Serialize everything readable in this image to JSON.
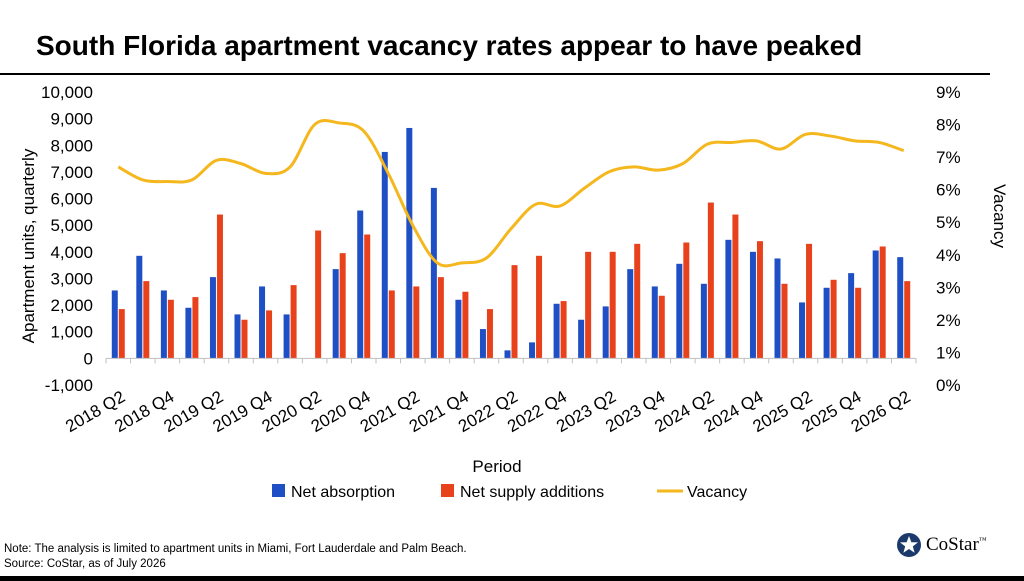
{
  "title": "South Florida apartment vacancy rates appear to have peaked",
  "footnote": {
    "note": "Note: The analysis is limited to apartment units in Miami, Fort Lauderdale and Palm Beach.",
    "source": "Source: CoStar, as of July 2026"
  },
  "logo": {
    "text": "CoStar",
    "tm": "™",
    "icon": "costar-star-logo"
  },
  "colors": {
    "absorption": "#1f4fc4",
    "supply": "#e8421c",
    "vacancy": "#f5b71e",
    "axis": "#bfbfbf"
  },
  "chart_data": {
    "type": "bar",
    "title": "South Florida apartment vacancy rates appear to have peaked",
    "xlabel": "Period",
    "ylabel": "Apartment units, quarterly",
    "y2label": "Vacancy",
    "ylim": [
      -1000,
      10000
    ],
    "y2lim": [
      0,
      9
    ],
    "yticks": [
      "10,000",
      "9,000",
      "8,000",
      "7,000",
      "6,000",
      "5,000",
      "4,000",
      "3,000",
      "2,000",
      "1,000",
      "0",
      "-1,000"
    ],
    "y2ticks": [
      "9%",
      "8%",
      "7%",
      "6%",
      "5%",
      "4%",
      "3%",
      "2%",
      "1%",
      "0%"
    ],
    "xticklabels": [
      "2018 Q2",
      "2018 Q4",
      "2019 Q2",
      "2019 Q4",
      "2020 Q2",
      "2020 Q4",
      "2021 Q2",
      "2021 Q4",
      "2022 Q2",
      "2022 Q4",
      "2023 Q2",
      "2023 Q4",
      "2024 Q2",
      "2024 Q4",
      "2025 Q2",
      "2025 Q4",
      "2026 Q2"
    ],
    "categories": [
      "2018 Q2",
      "2018 Q3",
      "2018 Q4",
      "2019 Q1",
      "2019 Q2",
      "2019 Q3",
      "2019 Q4",
      "2020 Q1",
      "2020 Q2",
      "2020 Q3",
      "2020 Q4",
      "2021 Q1",
      "2021 Q2",
      "2021 Q3",
      "2021 Q4",
      "2022 Q1",
      "2022 Q2",
      "2022 Q3",
      "2022 Q4",
      "2023 Q1",
      "2023 Q2",
      "2023 Q3",
      "2023 Q4",
      "2024 Q1",
      "2024 Q2",
      "2024 Q3",
      "2024 Q4",
      "2025 Q1",
      "2025 Q2",
      "2025 Q3",
      "2025 Q4",
      "2026 Q1",
      "2026 Q2"
    ],
    "series": [
      {
        "name": "Net absorption",
        "kind": "bar",
        "values": [
          2550,
          3850,
          2550,
          1900,
          3050,
          1650,
          2700,
          1650,
          0,
          3350,
          5550,
          7750,
          8650,
          6400,
          2200,
          1100,
          300,
          600,
          2050,
          1450,
          1950,
          3350,
          2700,
          3550,
          2800,
          4450,
          4000,
          3750,
          2100,
          2650,
          3200,
          4050,
          3800
        ]
      },
      {
        "name": "Net supply additions",
        "kind": "bar",
        "values": [
          1850,
          2900,
          2200,
          2300,
          5400,
          1450,
          1800,
          2750,
          4800,
          3950,
          4650,
          2550,
          2700,
          3050,
          2500,
          1850,
          3500,
          3850,
          2150,
          4000,
          4000,
          4300,
          2350,
          4350,
          5850,
          5400,
          4400,
          2800,
          4300,
          2950,
          2650,
          4200,
          2900
        ]
      },
      {
        "name": "Vacancy",
        "kind": "line",
        "values": [
          6.7,
          6.3,
          6.25,
          6.3,
          6.9,
          6.8,
          6.5,
          6.7,
          8.0,
          8.05,
          7.8,
          6.5,
          4.9,
          3.75,
          3.75,
          3.9,
          4.8,
          5.55,
          5.5,
          6.05,
          6.55,
          6.7,
          6.6,
          6.8,
          7.4,
          7.45,
          7.5,
          7.25,
          7.7,
          7.65,
          7.5,
          7.45,
          7.2
        ]
      }
    ],
    "legend_position": "bottom",
    "grid": false
  }
}
